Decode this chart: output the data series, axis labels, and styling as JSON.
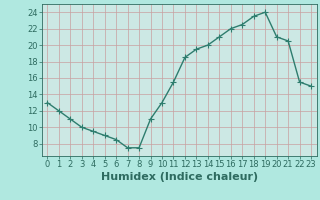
{
  "x": [
    0,
    1,
    2,
    3,
    4,
    5,
    6,
    7,
    8,
    9,
    10,
    11,
    12,
    13,
    14,
    15,
    16,
    17,
    18,
    19,
    20,
    21,
    22,
    23
  ],
  "y": [
    13,
    12,
    11,
    10,
    9.5,
    9,
    8.5,
    7.5,
    7.5,
    11,
    13,
    15.5,
    18.5,
    19.5,
    20,
    21,
    22,
    22.5,
    23.5,
    24,
    21,
    20.5,
    15.5,
    15
  ],
  "line_color": "#2e7d6e",
  "marker": "+",
  "marker_size": 4,
  "linewidth": 1.0,
  "background_color": "#b0e8e0",
  "plot_bg_color": "#cce8e4",
  "grid_color": "#c8a0a0",
  "xlabel": "Humidex (Indice chaleur)",
  "xlabel_fontsize": 8,
  "xlim": [
    -0.5,
    23.5
  ],
  "ylim": [
    6.5,
    25
  ],
  "yticks": [
    8,
    10,
    12,
    14,
    16,
    18,
    20,
    22,
    24
  ],
  "xticks": [
    0,
    1,
    2,
    3,
    4,
    5,
    6,
    7,
    8,
    9,
    10,
    11,
    12,
    13,
    14,
    15,
    16,
    17,
    18,
    19,
    20,
    21,
    22,
    23
  ],
  "tick_fontsize": 6,
  "tick_color": "#2e6b60"
}
